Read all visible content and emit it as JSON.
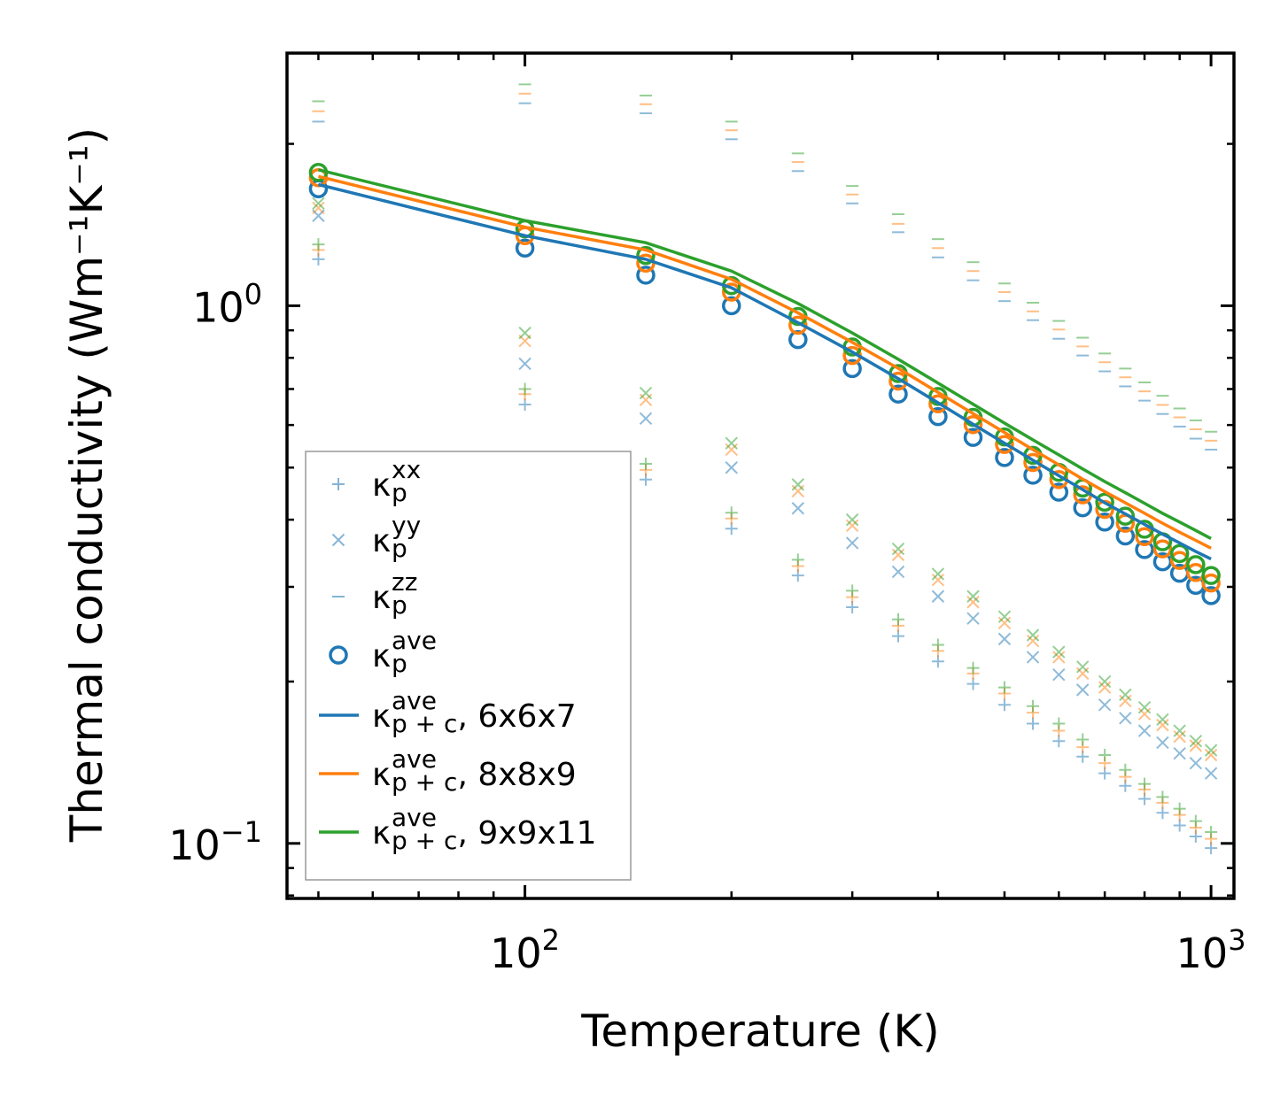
{
  "chart_data": {
    "type": "scatter",
    "xscale": "log",
    "yscale": "log",
    "xlabel": "Temperature (K)",
    "ylabel": "Thermal conductivity (Wm⁻¹K⁻¹)",
    "xlim": [
      45,
      1080
    ],
    "ylim": [
      0.079,
      2.95
    ],
    "xticks": [
      {
        "base": "10",
        "exp": "2",
        "value": 100
      },
      {
        "base": "10",
        "exp": "3",
        "value": 1000
      }
    ],
    "yticks": [
      {
        "base": "10",
        "exp": "0",
        "value": 1
      },
      {
        "base": "10",
        "exp": "−1",
        "value": 0.1
      }
    ],
    "colors": {
      "C0": "#1f77b4",
      "C1": "#ff7f0e",
      "C2": "#2ca02c"
    },
    "x": [
      50,
      100,
      150,
      200,
      250,
      300,
      350,
      400,
      450,
      500,
      550,
      600,
      650,
      700,
      750,
      800,
      850,
      900,
      950,
      1000
    ],
    "series": [
      {
        "name": "kxx",
        "marker": "+",
        "color": "C0",
        "values": [
          1.22,
          0.655,
          0.475,
          0.385,
          0.315,
          0.275,
          0.243,
          0.218,
          0.198,
          0.181,
          0.167,
          0.155,
          0.145,
          0.135,
          0.128,
          0.121,
          0.114,
          0.108,
          0.103,
          0.098
        ]
      },
      {
        "name": "kxx",
        "marker": "+",
        "color": "C1",
        "values": [
          1.27,
          0.685,
          0.495,
          0.402,
          0.328,
          0.287,
          0.254,
          0.228,
          0.207,
          0.19,
          0.175,
          0.162,
          0.151,
          0.141,
          0.133,
          0.126,
          0.119,
          0.113,
          0.107,
          0.102
        ]
      },
      {
        "name": "kxx",
        "marker": "+",
        "color": "C2",
        "values": [
          1.3,
          0.7,
          0.508,
          0.412,
          0.337,
          0.295,
          0.261,
          0.234,
          0.212,
          0.195,
          0.18,
          0.167,
          0.156,
          0.146,
          0.137,
          0.129,
          0.122,
          0.116,
          0.11,
          0.105
        ]
      },
      {
        "name": "kyy",
        "marker": "x",
        "color": "C0",
        "values": [
          1.47,
          0.78,
          0.617,
          0.5,
          0.42,
          0.362,
          0.32,
          0.288,
          0.262,
          0.24,
          0.222,
          0.206,
          0.193,
          0.181,
          0.171,
          0.162,
          0.154,
          0.147,
          0.141,
          0.135
        ]
      },
      {
        "name": "kyy",
        "marker": "x",
        "color": "C1",
        "values": [
          1.52,
          0.86,
          0.668,
          0.54,
          0.452,
          0.39,
          0.344,
          0.309,
          0.281,
          0.257,
          0.238,
          0.222,
          0.207,
          0.195,
          0.184,
          0.174,
          0.166,
          0.158,
          0.152,
          0.146
        ]
      },
      {
        "name": "kyy",
        "marker": "x",
        "color": "C2",
        "values": [
          1.55,
          0.89,
          0.688,
          0.555,
          0.465,
          0.4,
          0.353,
          0.317,
          0.288,
          0.264,
          0.244,
          0.227,
          0.213,
          0.2,
          0.189,
          0.179,
          0.17,
          0.162,
          0.155,
          0.149
        ]
      },
      {
        "name": "kzz",
        "marker": "_",
        "color": "C0",
        "values": [
          2.2,
          2.38,
          2.28,
          2.04,
          1.78,
          1.55,
          1.37,
          1.23,
          1.115,
          1.02,
          0.94,
          0.868,
          0.808,
          0.755,
          0.708,
          0.666,
          0.629,
          0.596,
          0.566,
          0.54
        ]
      },
      {
        "name": "kzz",
        "marker": "_",
        "color": "C1",
        "values": [
          2.3,
          2.48,
          2.37,
          2.12,
          1.85,
          1.61,
          1.42,
          1.28,
          1.16,
          1.06,
          0.976,
          0.903,
          0.84,
          0.785,
          0.736,
          0.693,
          0.654,
          0.62,
          0.589,
          0.561
        ]
      },
      {
        "name": "kzz",
        "marker": "_",
        "color": "C2",
        "values": [
          2.4,
          2.58,
          2.46,
          2.2,
          1.92,
          1.67,
          1.48,
          1.33,
          1.205,
          1.1,
          1.013,
          0.937,
          0.872,
          0.815,
          0.764,
          0.72,
          0.68,
          0.644,
          0.612,
          0.583
        ]
      },
      {
        "name": "kave",
        "marker": "o",
        "color": "C0",
        "values": [
          1.65,
          1.28,
          1.14,
          1.0,
          0.865,
          0.764,
          0.685,
          0.622,
          0.569,
          0.522,
          0.484,
          0.45,
          0.421,
          0.396,
          0.373,
          0.352,
          0.334,
          0.318,
          0.302,
          0.289
        ]
      },
      {
        "name": "kave",
        "marker": "o",
        "color": "C1",
        "values": [
          1.73,
          1.35,
          1.2,
          1.06,
          0.92,
          0.808,
          0.724,
          0.657,
          0.601,
          0.552,
          0.511,
          0.475,
          0.445,
          0.418,
          0.394,
          0.372,
          0.353,
          0.336,
          0.319,
          0.305
        ]
      },
      {
        "name": "kave",
        "marker": "o",
        "color": "C2",
        "values": [
          1.77,
          1.39,
          1.24,
          1.09,
          0.955,
          0.838,
          0.748,
          0.678,
          0.62,
          0.57,
          0.527,
          0.49,
          0.458,
          0.431,
          0.406,
          0.384,
          0.364,
          0.346,
          0.33,
          0.315
        ]
      },
      {
        "name": "kpc_6x6x7",
        "marker": "line",
        "color": "C0",
        "values": [
          1.68,
          1.35,
          1.22,
          1.08,
          0.93,
          0.82,
          0.732,
          0.66,
          0.602,
          0.555,
          0.516,
          0.483,
          0.455,
          0.43,
          0.41,
          0.392,
          0.376,
          0.362,
          0.349,
          0.338
        ]
      },
      {
        "name": "kpc_8x8x9",
        "marker": "line",
        "color": "C1",
        "values": [
          1.74,
          1.4,
          1.27,
          1.12,
          0.97,
          0.855,
          0.765,
          0.69,
          0.63,
          0.581,
          0.54,
          0.506,
          0.476,
          0.451,
          0.43,
          0.411,
          0.394,
          0.379,
          0.366,
          0.354
        ]
      },
      {
        "name": "kpc_9x9x11",
        "marker": "line",
        "color": "C2",
        "values": [
          1.79,
          1.44,
          1.31,
          1.16,
          1.01,
          0.89,
          0.795,
          0.718,
          0.656,
          0.605,
          0.563,
          0.528,
          0.497,
          0.471,
          0.449,
          0.429,
          0.411,
          0.396,
          0.382,
          0.369
        ]
      }
    ],
    "legend": {
      "location": "lower-left",
      "entries": [
        {
          "sym": "κ",
          "sub": "p",
          "sup": "xx",
          "tail": "",
          "marker": "+",
          "color": "C0"
        },
        {
          "sym": "κ",
          "sub": "p",
          "sup": "yy",
          "tail": "",
          "marker": "x",
          "color": "C0"
        },
        {
          "sym": "κ",
          "sub": "p",
          "sup": "zz",
          "tail": "",
          "marker": "_",
          "color": "C0"
        },
        {
          "sym": "κ",
          "sub": "p",
          "sup": "ave",
          "tail": "",
          "marker": "o",
          "color": "C0"
        },
        {
          "sym": "κ",
          "sub": "p + c",
          "sup": "ave",
          "tail": ", 6x6x7",
          "marker": "line",
          "color": "C0"
        },
        {
          "sym": "κ",
          "sub": "p + c",
          "sup": "ave",
          "tail": ", 8x8x9",
          "marker": "line",
          "color": "C1"
        },
        {
          "sym": "κ",
          "sub": "p + c",
          "sup": "ave",
          "tail": ", 9x9x11",
          "marker": "line",
          "color": "C2"
        }
      ]
    }
  }
}
